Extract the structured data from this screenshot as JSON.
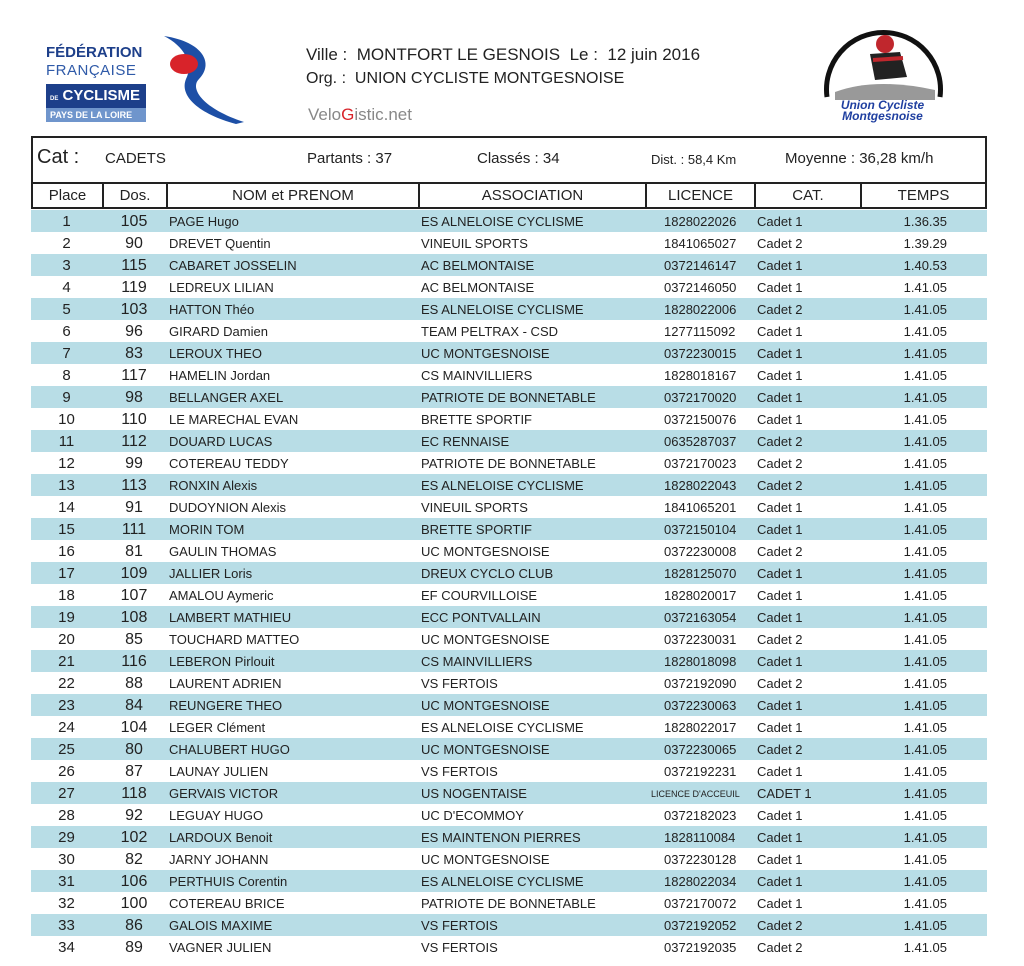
{
  "logos": {
    "left": {
      "lines": [
        "FÉDÉRATION",
        "FRANÇAISE",
        "CYCLISME",
        "PAYS DE LA LOIRE"
      ],
      "prefix": "DE"
    },
    "right": {
      "text": [
        "Union Cycliste",
        "Montgesnoise"
      ]
    }
  },
  "header": {
    "ville_label": "Ville :",
    "ville": "MONTFORT LE GESNOIS",
    "date_label": "Le :",
    "date": "12 juin 2016",
    "org_label": "Org. :",
    "org": "UNION CYCLISTE MONTGESNOISE",
    "site_a": "Velo",
    "site_b": "G",
    "site_c": "istic.net"
  },
  "summary": {
    "cat_label": "Cat :",
    "cat": "CADETS",
    "partants": "Partants : 37",
    "classes": "Classés : 34",
    "dist": "Dist. : 58,4 Km",
    "moyenne": "Moyenne : 36,28 km/h"
  },
  "columns": [
    "Place",
    "Dos.",
    "NOM et PRENOM",
    "ASSOCIATION",
    "LICENCE",
    "CAT.",
    "TEMPS"
  ],
  "colors": {
    "row_alt": "#b8dde6"
  },
  "rows": [
    [
      "1",
      "105",
      "PAGE  Hugo",
      "ES ALNELOISE CYCLISME",
      "1828022026",
      "Cadet 1",
      "1.36.35"
    ],
    [
      "2",
      "90",
      "DREVET  Quentin",
      "VINEUIL SPORTS",
      "1841065027",
      "Cadet 2",
      "1.39.29"
    ],
    [
      "3",
      "115",
      "CABARET  JOSSELIN",
      "AC BELMONTAISE",
      "0372146147",
      "Cadet 1",
      "1.40.53"
    ],
    [
      "4",
      "119",
      "LEDREUX  LILIAN",
      "AC BELMONTAISE",
      "0372146050",
      "Cadet 1",
      "1.41.05"
    ],
    [
      "5",
      "103",
      "HATTON  Théo",
      "ES ALNELOISE CYCLISME",
      "1828022006",
      "Cadet 2",
      "1.41.05"
    ],
    [
      "6",
      "96",
      "GIRARD  Damien",
      "TEAM PELTRAX - CSD",
      "1277115092",
      "Cadet 1",
      "1.41.05"
    ],
    [
      "7",
      "83",
      "LEROUX  THEO",
      "UC MONTGESNOISE",
      "0372230015",
      "Cadet 1",
      "1.41.05"
    ],
    [
      "8",
      "117",
      "HAMELIN  Jordan",
      "CS MAINVILLIERS",
      "1828018167",
      "Cadet 1",
      "1.41.05"
    ],
    [
      "9",
      "98",
      "BELLANGER  AXEL",
      "PATRIOTE DE BONNETABLE",
      "0372170020",
      "Cadet 1",
      "1.41.05"
    ],
    [
      "10",
      "110",
      "LE MARECHAL  EVAN",
      "BRETTE SPORTIF",
      "0372150076",
      "Cadet 1",
      "1.41.05"
    ],
    [
      "11",
      "112",
      "DOUARD  LUCAS",
      "EC RENNAISE",
      "0635287037",
      "Cadet 2",
      "1.41.05"
    ],
    [
      "12",
      "99",
      "COTEREAU  TEDDY",
      "PATRIOTE DE BONNETABLE",
      "0372170023",
      "Cadet 2",
      "1.41.05"
    ],
    [
      "13",
      "113",
      "RONXIN  Alexis",
      "ES ALNELOISE CYCLISME",
      "1828022043",
      "Cadet 2",
      "1.41.05"
    ],
    [
      "14",
      "91",
      "DUDOYNION  Alexis",
      "VINEUIL SPORTS",
      "1841065201",
      "Cadet 1",
      "1.41.05"
    ],
    [
      "15",
      "111",
      "MORIN  TOM",
      "BRETTE SPORTIF",
      "0372150104",
      "Cadet 1",
      "1.41.05"
    ],
    [
      "16",
      "81",
      "GAULIN  THOMAS",
      "UC MONTGESNOISE",
      "0372230008",
      "Cadet 2",
      "1.41.05"
    ],
    [
      "17",
      "109",
      "JALLIER  Loris",
      "DREUX CYCLO CLUB",
      "1828125070",
      "Cadet 1",
      "1.41.05"
    ],
    [
      "18",
      "107",
      "AMALOU  Aymeric",
      "EF COURVILLOISE",
      "1828020017",
      "Cadet 1",
      "1.41.05"
    ],
    [
      "19",
      "108",
      "LAMBERT  MATHIEU",
      "ECC PONTVALLAIN",
      "0372163054",
      "Cadet 1",
      "1.41.05"
    ],
    [
      "20",
      "85",
      "TOUCHARD  MATTEO",
      "UC MONTGESNOISE",
      "0372230031",
      "Cadet 2",
      "1.41.05"
    ],
    [
      "21",
      "116",
      "LEBERON  Pirlouit",
      "CS MAINVILLIERS",
      "1828018098",
      "Cadet 1",
      "1.41.05"
    ],
    [
      "22",
      "88",
      "LAURENT  ADRIEN",
      "VS FERTOIS",
      "0372192090",
      "Cadet 2",
      "1.41.05"
    ],
    [
      "23",
      "84",
      "REUNGERE  THEO",
      "UC MONTGESNOISE",
      "0372230063",
      "Cadet 1",
      "1.41.05"
    ],
    [
      "24",
      "104",
      "LEGER  Clément",
      "ES ALNELOISE CYCLISME",
      "1828022017",
      "Cadet 1",
      "1.41.05"
    ],
    [
      "25",
      "80",
      "CHALUBERT  HUGO",
      "UC MONTGESNOISE",
      "0372230065",
      "Cadet 2",
      "1.41.05"
    ],
    [
      "26",
      "87",
      "LAUNAY  JULIEN",
      "VS FERTOIS",
      "0372192231",
      "Cadet 1",
      "1.41.05"
    ],
    [
      "27",
      "118",
      "GERVAIS  VICTOR",
      "US NOGENTAISE",
      "LICENCE D'ACCEUIL",
      "CADET 1",
      "1.41.05"
    ],
    [
      "28",
      "92",
      "LEGUAY  HUGO",
      "UC D'ECOMMOY",
      "0372182023",
      "Cadet 1",
      "1.41.05"
    ],
    [
      "29",
      "102",
      "LARDOUX  Benoit",
      "ES MAINTENON PIERRES",
      "1828110084",
      "Cadet 1",
      "1.41.05"
    ],
    [
      "30",
      "82",
      "JARNY  JOHANN",
      "UC MONTGESNOISE",
      "0372230128",
      "Cadet 1",
      "1.41.05"
    ],
    [
      "31",
      "106",
      "PERTHUIS  Corentin",
      "ES ALNELOISE CYCLISME",
      "1828022034",
      "Cadet 1",
      "1.41.05"
    ],
    [
      "32",
      "100",
      "COTEREAU  BRICE",
      "PATRIOTE DE BONNETABLE",
      "0372170072",
      "Cadet 1",
      "1.41.05"
    ],
    [
      "33",
      "86",
      "GALOIS  MAXIME",
      "VS FERTOIS",
      "0372192052",
      "Cadet 2",
      "1.41.05"
    ],
    [
      "34",
      "89",
      "VAGNER  JULIEN",
      "VS FERTOIS",
      "0372192035",
      "Cadet 2",
      "1.41.05"
    ]
  ]
}
